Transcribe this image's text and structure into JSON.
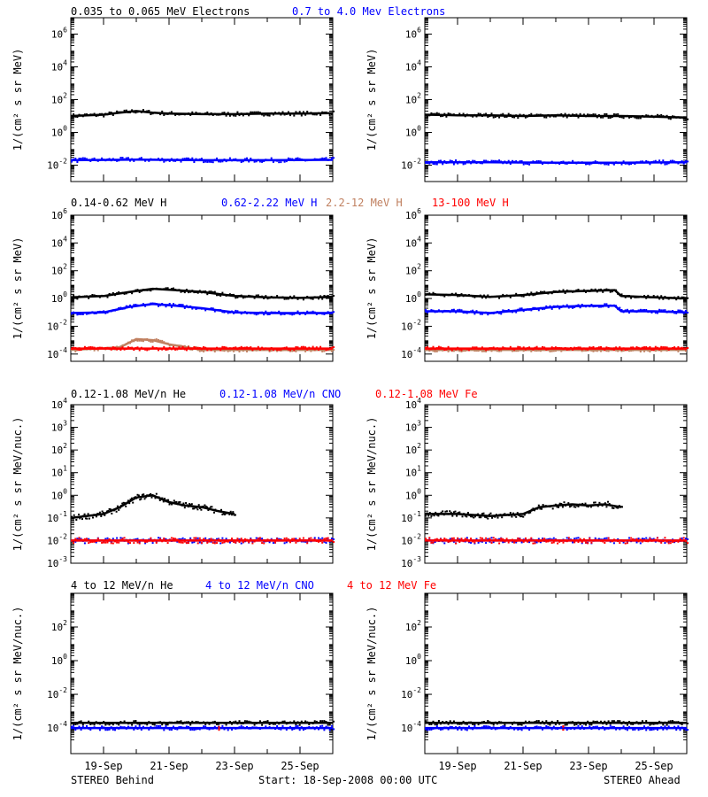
{
  "footer": {
    "left_label": "STEREO Behind",
    "center_label": "Start: 18-Sep-2008 00:00 UTC",
    "right_label": "STEREO Ahead"
  },
  "x_ticks": [
    "19-Sep",
    "21-Sep",
    "23-Sep",
    "25-Sep"
  ],
  "colors": {
    "black": "#000000",
    "blue": "#0000ff",
    "tan": "#c08060",
    "red": "#ff0000"
  },
  "chart_data": [
    {
      "type": "scatter",
      "row": 0,
      "ylabel": "1/(cm² s sr MeV)",
      "ylog": true,
      "ylim": [
        0.001,
        10000000
      ],
      "yticks": [
        {
          "exp": -2,
          "label": "10-2"
        },
        {
          "exp": 0,
          "label": "100"
        },
        {
          "exp": 2,
          "label": "102"
        },
        {
          "exp": 4,
          "label": "104"
        },
        {
          "exp": 6,
          "label": "106"
        }
      ],
      "legend": [
        {
          "name": "0.035 to 0.065 MeV Electrons",
          "color": "#000000"
        },
        {
          "name": "0.7 to 4.0 Mev Electrons",
          "color": "#0000ff"
        }
      ],
      "series": [
        {
          "name": "0.035 to 0.065 MeV Electrons",
          "color": "#000000",
          "panel": "behind",
          "x": [
            0,
            1,
            1.5,
            2,
            2.5,
            3,
            4,
            5,
            6,
            7,
            8
          ],
          "y": [
            10,
            12,
            16,
            20,
            16,
            14,
            13,
            13,
            14,
            14,
            15
          ]
        },
        {
          "name": "0.7 to 4.0 Mev Electrons",
          "color": "#0000ff",
          "panel": "behind",
          "x": [
            0,
            2,
            4,
            6,
            8
          ],
          "y": [
            0.02,
            0.022,
            0.02,
            0.02,
            0.021
          ]
        },
        {
          "name": "0.035 to 0.065 MeV Electrons",
          "color": "#000000",
          "panel": "ahead",
          "x": [
            0,
            1,
            2,
            3,
            4,
            5,
            6,
            7,
            8
          ],
          "y": [
            12,
            11,
            11,
            10,
            11,
            10,
            10,
            9,
            8
          ]
        },
        {
          "name": "0.7 to 4.0 Mev Electrons",
          "color": "#0000ff",
          "panel": "ahead",
          "x": [
            0,
            2,
            4,
            6,
            8
          ],
          "y": [
            0.015,
            0.015,
            0.014,
            0.014,
            0.015
          ]
        }
      ]
    },
    {
      "type": "scatter",
      "row": 1,
      "ylabel": "1/(cm² s sr MeV)",
      "ylog": true,
      "ylim": [
        3e-05,
        1000000
      ],
      "yticks": [
        {
          "exp": -4,
          "label": "10-4"
        },
        {
          "exp": -2,
          "label": "10-2"
        },
        {
          "exp": 0,
          "label": "100"
        },
        {
          "exp": 2,
          "label": "102"
        },
        {
          "exp": 4,
          "label": "104"
        },
        {
          "exp": 6,
          "label": "106"
        }
      ],
      "legend": [
        {
          "name": "0.14-0.62 MeV H",
          "color": "#000000"
        },
        {
          "name": "0.62-2.22 MeV H",
          "color": "#0000ff"
        },
        {
          "name": "2.2-12 MeV H",
          "color": "#c08060"
        },
        {
          "name": "13-100 MeV H",
          "color": "#ff0000"
        }
      ],
      "series": [
        {
          "name": "0.14-0.62 MeV H",
          "color": "#000000",
          "panel": "behind",
          "x": [
            0,
            1,
            1.8,
            2.5,
            3.2,
            4,
            5,
            6,
            7,
            8
          ],
          "y": [
            1.2,
            1.5,
            3,
            5,
            4,
            3,
            1.5,
            1.2,
            1.1,
            1.3
          ]
        },
        {
          "name": "0.62-2.22 MeV H",
          "color": "#0000ff",
          "panel": "behind",
          "x": [
            0,
            1,
            1.8,
            2.5,
            3.2,
            4,
            5,
            6,
            7,
            8
          ],
          "y": [
            0.09,
            0.1,
            0.25,
            0.4,
            0.3,
            0.2,
            0.1,
            0.09,
            0.09,
            0.09
          ]
        },
        {
          "name": "2.2-12 MeV H",
          "color": "#c08060",
          "panel": "behind",
          "x": [
            0,
            1.5,
            2,
            2.5,
            3,
            4,
            6,
            8
          ],
          "y": [
            0.0002,
            0.0003,
            0.0012,
            0.001,
            0.0005,
            0.0002,
            0.0002,
            0.0002
          ]
        },
        {
          "name": "13-100 MeV H",
          "color": "#ff0000",
          "panel": "behind",
          "x": [
            0,
            2,
            4,
            6,
            8
          ],
          "y": [
            0.00025,
            0.00025,
            0.00025,
            0.00025,
            0.00025
          ]
        },
        {
          "name": "0.14-0.62 MeV H",
          "color": "#000000",
          "panel": "ahead",
          "x": [
            0,
            1,
            2,
            3,
            4,
            5,
            5.8,
            6,
            7,
            8
          ],
          "y": [
            2,
            1.8,
            1.3,
            1.8,
            3,
            3.5,
            4,
            1.5,
            1.2,
            1
          ]
        },
        {
          "name": "0.62-2.22 MeV H",
          "color": "#0000ff",
          "panel": "ahead",
          "x": [
            0,
            1,
            2,
            3,
            4,
            5,
            5.8,
            6,
            7,
            8
          ],
          "y": [
            0.12,
            0.12,
            0.09,
            0.15,
            0.25,
            0.3,
            0.3,
            0.12,
            0.12,
            0.1
          ]
        },
        {
          "name": "2.2-12 MeV H",
          "color": "#c08060",
          "panel": "ahead",
          "x": [
            0,
            2,
            4,
            6,
            8
          ],
          "y": [
            0.0002,
            0.0002,
            0.0002,
            0.0002,
            0.0002
          ]
        },
        {
          "name": "13-100 MeV H",
          "color": "#ff0000",
          "panel": "ahead",
          "x": [
            0,
            2,
            4,
            6,
            8
          ],
          "y": [
            0.00025,
            0.00025,
            0.00025,
            0.00025,
            0.00025
          ]
        }
      ]
    },
    {
      "type": "scatter",
      "row": 2,
      "ylabel": "1/(cm² s sr MeV/nuc.)",
      "ylog": true,
      "ylim": [
        0.001,
        10000
      ],
      "yticks": [
        {
          "exp": -3,
          "label": "10-3"
        },
        {
          "exp": -2,
          "label": "10-2"
        },
        {
          "exp": -1,
          "label": "10-1"
        },
        {
          "exp": 0,
          "label": "100"
        },
        {
          "exp": 1,
          "label": "101"
        },
        {
          "exp": 2,
          "label": "102"
        },
        {
          "exp": 3,
          "label": "103"
        },
        {
          "exp": 4,
          "label": "104"
        }
      ],
      "legend": [
        {
          "name": "0.12-1.08 MeV/n He",
          "color": "#000000"
        },
        {
          "name": "0.12-1.08 MeV/n CNO",
          "color": "#0000ff"
        },
        {
          "name": "0.12-1.08 MeV Fe",
          "color": "#ff0000"
        }
      ],
      "series": [
        {
          "name": "0.12-1.08 MeV/n He",
          "color": "#000000",
          "panel": "behind",
          "x": [
            0,
            1,
            1.5,
            2,
            2.5,
            3,
            3.5,
            4,
            4.5,
            5
          ],
          "y": [
            0.1,
            0.15,
            0.3,
            0.8,
            1,
            0.5,
            0.35,
            0.3,
            0.2,
            0.15
          ]
        },
        {
          "name": "0.12-1.08 MeV/n CNO",
          "color": "#0000ff",
          "panel": "behind",
          "x": [
            0,
            2,
            4,
            6,
            8
          ],
          "y": [
            0.01,
            0.01,
            0.01,
            0.01,
            0.01
          ]
        },
        {
          "name": "0.12-1.08 MeV Fe",
          "color": "#ff0000",
          "panel": "behind",
          "x": [
            0,
            2,
            4,
            6,
            8
          ],
          "y": [
            0.01,
            0.01,
            0.01,
            0.01,
            0.01
          ]
        },
        {
          "name": "0.12-1.08 MeV/n He",
          "color": "#000000",
          "panel": "ahead",
          "x": [
            0,
            1,
            2,
            3,
            3.5,
            4,
            4.5,
            5,
            5.5,
            6
          ],
          "y": [
            0.15,
            0.15,
            0.12,
            0.15,
            0.3,
            0.35,
            0.4,
            0.35,
            0.4,
            0.3
          ]
        },
        {
          "name": "0.12-1.08 MeV/n CNO",
          "color": "#0000ff",
          "panel": "ahead",
          "x": [
            0,
            2,
            4,
            6,
            8
          ],
          "y": [
            0.01,
            0.01,
            0.01,
            0.01,
            0.01
          ]
        },
        {
          "name": "0.12-1.08 MeV Fe",
          "color": "#ff0000",
          "panel": "ahead",
          "x": [
            0,
            2,
            4,
            6,
            8
          ],
          "y": [
            0.01,
            0.01,
            0.01,
            0.01,
            0.01
          ]
        }
      ]
    },
    {
      "type": "scatter",
      "row": 3,
      "ylabel": "1/(cm² s sr MeV/nuc.)",
      "ylog": true,
      "ylim": [
        3e-06,
        10000
      ],
      "yticks": [
        {
          "exp": -4,
          "label": "10-4"
        },
        {
          "exp": -2,
          "label": "10-2"
        },
        {
          "exp": 0,
          "label": "100"
        },
        {
          "exp": 2,
          "label": "102"
        }
      ],
      "legend": [
        {
          "name": "4 to 12 MeV/n He",
          "color": "#000000"
        },
        {
          "name": "4 to 12 MeV/n CNO",
          "color": "#0000ff"
        },
        {
          "name": "4 to 12 MeV Fe",
          "color": "#ff0000"
        }
      ],
      "series": [
        {
          "name": "4 to 12 MeV/n He",
          "color": "#000000",
          "panel": "behind",
          "x": [
            0,
            2,
            4,
            6,
            8
          ],
          "y": [
            0.0002,
            0.0002,
            0.0002,
            0.0002,
            0.0002
          ]
        },
        {
          "name": "4 to 12 MeV/n CNO",
          "color": "#0000ff",
          "panel": "behind",
          "x": [
            0,
            2,
            4,
            6,
            8
          ],
          "y": [
            0.0001,
            0.0001,
            0.0001,
            0.0001,
            0.0001
          ]
        },
        {
          "name": "4 to 12 MeV Fe",
          "color": "#ff0000",
          "panel": "behind",
          "x": [
            4.5
          ],
          "y": [
            0.0001
          ]
        },
        {
          "name": "4 to 12 MeV/n He",
          "color": "#000000",
          "panel": "ahead",
          "x": [
            0,
            2,
            4,
            6,
            8
          ],
          "y": [
            0.0002,
            0.0002,
            0.0002,
            0.0002,
            0.0002
          ]
        },
        {
          "name": "4 to 12 MeV/n CNO",
          "color": "#0000ff",
          "panel": "ahead",
          "x": [
            0,
            2,
            4,
            6,
            8
          ],
          "y": [
            0.0001,
            0.0001,
            0.0001,
            0.0001,
            0.0001
          ]
        },
        {
          "name": "4 to 12 MeV Fe",
          "color": "#ff0000",
          "panel": "ahead",
          "x": [
            4.2
          ],
          "y": [
            0.0001
          ]
        }
      ]
    }
  ]
}
